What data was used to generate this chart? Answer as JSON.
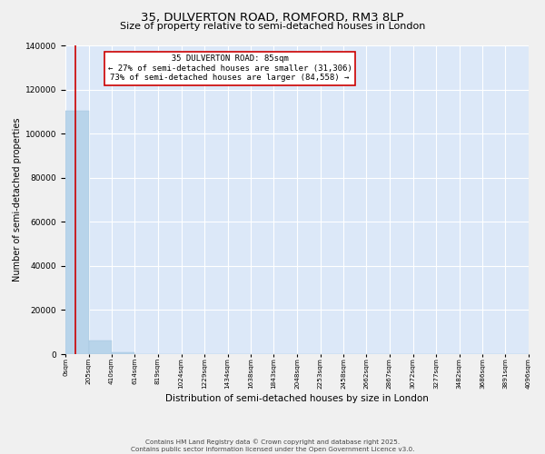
{
  "title": "35, DULVERTON ROAD, ROMFORD, RM3 8LP",
  "subtitle": "Size of property relative to semi-detached houses in London",
  "xlabel": "Distribution of semi-detached houses by size in London",
  "ylabel": "Number of semi-detached properties",
  "property_size": 85,
  "property_label": "35 DULVERTON ROAD: 85sqm",
  "pct_smaller": 27,
  "pct_larger": 73,
  "n_smaller": 31306,
  "n_larger": 84558,
  "annotation_box_color": "#ffffff",
  "annotation_box_edge": "#cc0000",
  "bar_color": "#b8d4ea",
  "bar_edge_color": "#a0c4e0",
  "vline_color": "#cc0000",
  "background_color": "#dce8f8",
  "fig_background_color": "#f0f0f0",
  "grid_color": "#ffffff",
  "ylim": [
    0,
    140000
  ],
  "yticks": [
    0,
    20000,
    40000,
    60000,
    80000,
    100000,
    120000,
    140000
  ],
  "bin_edges": [
    0,
    205,
    410,
    614,
    819,
    1024,
    1229,
    1434,
    1638,
    1843,
    2048,
    2253,
    2458,
    2662,
    2867,
    3072,
    3277,
    3482,
    3686,
    3891,
    4096
  ],
  "bin_labels": [
    "0sqm",
    "205sqm",
    "410sqm",
    "614sqm",
    "819sqm",
    "1024sqm",
    "1229sqm",
    "1434sqm",
    "1638sqm",
    "1843sqm",
    "2048sqm",
    "2253sqm",
    "2458sqm",
    "2662sqm",
    "2867sqm",
    "3072sqm",
    "3277sqm",
    "3482sqm",
    "3686sqm",
    "3891sqm",
    "4096sqm"
  ],
  "bar_heights": [
    110500,
    6200,
    800,
    200,
    80,
    45,
    30,
    20,
    15,
    10,
    8,
    6,
    5,
    4,
    3,
    3,
    2,
    2,
    1,
    1
  ],
  "footer_line1": "Contains HM Land Registry data © Crown copyright and database right 2025.",
  "footer_line2": "Contains public sector information licensed under the Open Government Licence v3.0."
}
